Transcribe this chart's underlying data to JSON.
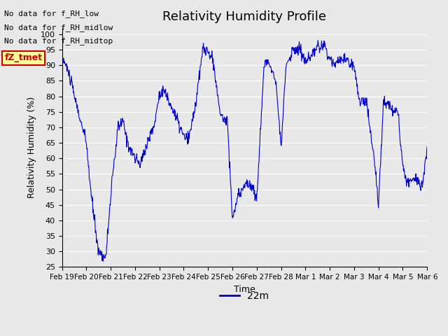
{
  "title": "Relativity Humidity Profile",
  "ylabel": "Relativity Humidity (%)",
  "xlabel": "Time",
  "legend_label": "22m",
  "line_color": "#0000cc",
  "legend_line_color": "#0000cc",
  "background_color": "#e8e8e8",
  "plot_bg_color": "#e8e8e8",
  "ylim": [
    25,
    102
  ],
  "yticks": [
    25,
    30,
    35,
    40,
    45,
    50,
    55,
    60,
    65,
    70,
    75,
    80,
    85,
    90,
    95,
    100
  ],
  "xtick_labels": [
    "Feb 19",
    "Feb 20",
    "Feb 21",
    "Feb 22",
    "Feb 23",
    "Feb 24",
    "Feb 25",
    "Feb 26",
    "Feb 27",
    "Feb 28",
    "Mar 1",
    "Mar 2",
    "Mar 3",
    "Mar 4",
    "Mar 5",
    "Mar 6"
  ],
  "annotations": [
    "No data for f_RH_low",
    "No data for f_RH_midlow",
    "No data for f_RH_midtop"
  ],
  "legend_box_color": "#ffff99",
  "legend_box_edge": "#cc0000",
  "legend_text_color": "#cc0000"
}
